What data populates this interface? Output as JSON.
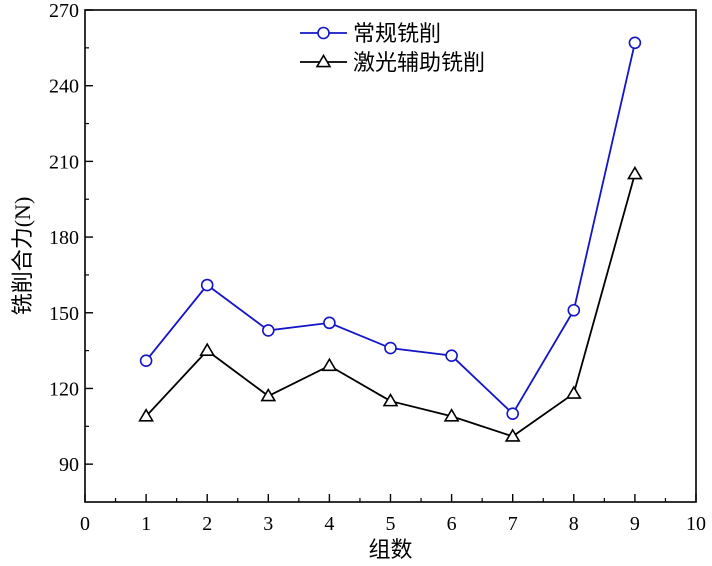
{
  "chart_data": {
    "type": "line",
    "title": "",
    "xlabel": "组数",
    "ylabel": "铣削合力(N)",
    "xlim": [
      0,
      10
    ],
    "ylim": [
      75,
      270
    ],
    "x_ticks": [
      0,
      1,
      2,
      3,
      4,
      5,
      6,
      7,
      8,
      9,
      10
    ],
    "y_ticks": [
      90,
      120,
      150,
      180,
      210,
      240,
      270
    ],
    "legend_position": "top-center",
    "grid": false,
    "series": [
      {
        "name": "常规铣削",
        "color": "#1414c8",
        "marker": "circle",
        "x": [
          1,
          2,
          3,
          4,
          5,
          6,
          7,
          8,
          9
        ],
        "values": [
          131,
          161,
          143,
          146,
          136,
          133,
          110,
          151,
          257
        ]
      },
      {
        "name": "激光辅助铣削",
        "color": "#000000",
        "marker": "triangle",
        "x": [
          1,
          2,
          3,
          4,
          5,
          6,
          7,
          8,
          9
        ],
        "values": [
          109,
          135,
          117,
          129,
          115,
          109,
          101,
          118,
          205
        ]
      }
    ]
  }
}
